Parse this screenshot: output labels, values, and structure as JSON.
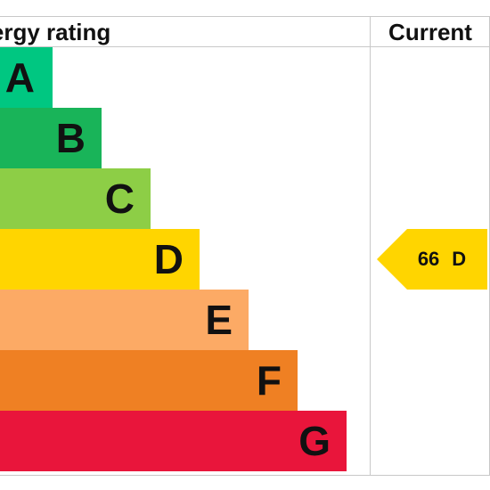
{
  "header": {
    "title": "nergy rating",
    "current_label": "Current"
  },
  "chart_data": {
    "type": "bar",
    "categories": [
      "A",
      "B",
      "C",
      "D",
      "E",
      "F",
      "G"
    ],
    "colors": [
      "#00c781",
      "#19b459",
      "#8dce46",
      "#ffd500",
      "#fcaa65",
      "#ef8023",
      "#e9153b"
    ],
    "current": {
      "score": "66",
      "band": "D",
      "color": "#ffd500"
    }
  }
}
